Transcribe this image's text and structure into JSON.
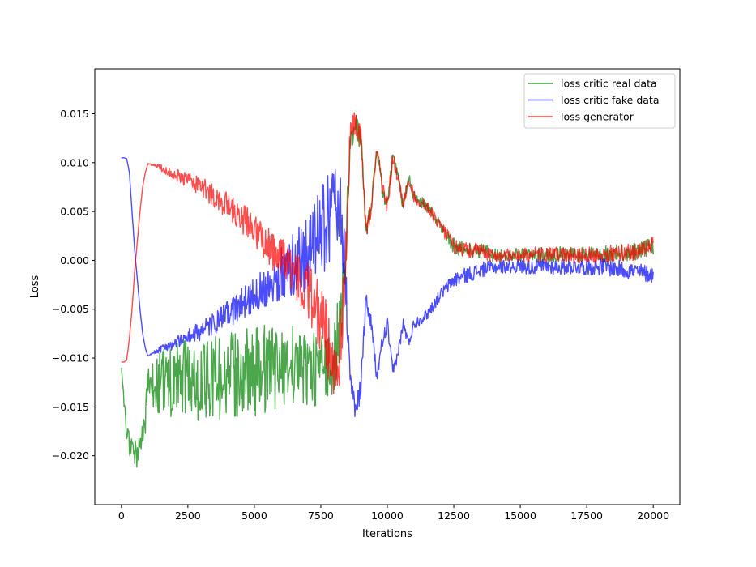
{
  "chart_data": {
    "type": "line",
    "title": "",
    "xlabel": "Iterations",
    "ylabel": "Loss",
    "xlim": [
      -1000,
      21000
    ],
    "ylim": [
      -0.025,
      0.0196
    ],
    "xticks": [
      0,
      2500,
      5000,
      7500,
      10000,
      12500,
      15000,
      17500,
      20000
    ],
    "xtick_labels": [
      "0",
      "2500",
      "5000",
      "7500",
      "10000",
      "12500",
      "15000",
      "17500",
      "20000"
    ],
    "yticks": [
      -0.02,
      -0.015,
      -0.01,
      -0.005,
      0.0,
      0.005,
      0.01,
      0.015
    ],
    "ytick_labels": [
      "−0.020",
      "−0.015",
      "−0.010",
      "−0.005",
      "0.000",
      "0.005",
      "0.010",
      "0.015"
    ],
    "grid": false,
    "legend_position": "top-right",
    "series": [
      {
        "name": "loss critic real data",
        "color": "#008000",
        "x": [
          0,
          100,
          200,
          300,
          400,
          500,
          600,
          700,
          800,
          900,
          1000,
          1500,
          2000,
          2500,
          3000,
          3500,
          4000,
          4500,
          5000,
          5500,
          6000,
          6500,
          7000,
          7500,
          7800,
          8000,
          8200,
          8400,
          8600,
          8800,
          9000,
          9200,
          9400,
          9600,
          9800,
          10000,
          10200,
          10400,
          10600,
          10800,
          11000,
          11500,
          12000,
          12500,
          13000,
          13500,
          14000,
          14500,
          15000,
          15500,
          16000,
          16500,
          17000,
          17500,
          18000,
          18500,
          19000,
          19500,
          20000
        ],
        "y": [
          -0.011,
          -0.0145,
          -0.0175,
          -0.019,
          -0.0195,
          -0.0198,
          -0.02,
          -0.0195,
          -0.018,
          -0.016,
          -0.0135,
          -0.0125,
          -0.0125,
          -0.012,
          -0.0125,
          -0.012,
          -0.012,
          -0.0115,
          -0.0115,
          -0.011,
          -0.011,
          -0.0105,
          -0.011,
          -0.0115,
          -0.011,
          -0.0095,
          -0.0075,
          -0.001,
          0.012,
          0.014,
          0.0125,
          0.003,
          0.0055,
          0.0115,
          0.0075,
          0.0055,
          0.0105,
          0.0085,
          0.0055,
          0.0085,
          0.0065,
          0.0055,
          0.0035,
          0.0015,
          0.001,
          0.001,
          0.0005,
          0.0005,
          0.0005,
          0.0006,
          0.0005,
          0.0006,
          0.0005,
          0.0006,
          0.0006,
          0.0007,
          0.0008,
          0.001,
          0.0015
        ],
        "noise": [
          0,
          0.0005,
          0.001,
          0.0015,
          0.0015,
          0.0015,
          0.0015,
          0.0015,
          0.0015,
          0.002,
          0.0025,
          0.0035,
          0.004,
          0.004,
          0.004,
          0.0045,
          0.0045,
          0.0045,
          0.0045,
          0.0045,
          0.004,
          0.004,
          0.004,
          0.004,
          0.004,
          0.004,
          0.004,
          0.003,
          0.0015,
          0.0015,
          0.0015,
          0.001,
          0.0008,
          0.0008,
          0.0008,
          0.0008,
          0.0008,
          0.0006,
          0.0006,
          0.0006,
          0.0006,
          0.0006,
          0.0006,
          0.0008,
          0.0008,
          0.0008,
          0.0007,
          0.0007,
          0.0007,
          0.0008,
          0.0008,
          0.0008,
          0.0008,
          0.0008,
          0.0009,
          0.0009,
          0.0009,
          0.0009,
          0.0009
        ]
      },
      {
        "name": "loss critic fake data",
        "color": "#0000ff",
        "x": [
          0,
          100,
          200,
          300,
          400,
          500,
          600,
          700,
          800,
          900,
          1000,
          1500,
          2000,
          2500,
          3000,
          3500,
          4000,
          4500,
          5000,
          5500,
          6000,
          6500,
          7000,
          7500,
          7800,
          8000,
          8200,
          8400,
          8600,
          8800,
          9000,
          9200,
          9400,
          9600,
          9800,
          10000,
          10200,
          10400,
          10600,
          10800,
          11000,
          11500,
          12000,
          12500,
          13000,
          13500,
          14000,
          14500,
          15000,
          15500,
          16000,
          16500,
          17000,
          17500,
          18000,
          18500,
          19000,
          19500,
          20000
        ],
        "y": [
          0.0105,
          0.0105,
          0.0104,
          0.009,
          0.005,
          0.001,
          -0.002,
          -0.005,
          -0.0075,
          -0.009,
          -0.0098,
          -0.009,
          -0.0085,
          -0.0078,
          -0.0072,
          -0.0065,
          -0.0055,
          -0.0045,
          -0.0035,
          -0.0025,
          -0.0015,
          -0.0005,
          0.001,
          0.003,
          0.004,
          0.006,
          0.0065,
          -0.0005,
          -0.012,
          -0.0155,
          -0.013,
          -0.004,
          -0.0065,
          -0.012,
          -0.0085,
          -0.0065,
          -0.0115,
          -0.0095,
          -0.0065,
          -0.0085,
          -0.0065,
          -0.0055,
          -0.0035,
          -0.002,
          -0.0015,
          -0.001,
          -0.0007,
          -0.0006,
          -0.0006,
          -0.0007,
          -0.0006,
          -0.0007,
          -0.0006,
          -0.0007,
          -0.0006,
          -0.0008,
          -0.001,
          -0.0012,
          -0.0015
        ],
        "noise": [
          0,
          0,
          0,
          0,
          0,
          0,
          0,
          0,
          0,
          0,
          0,
          0.0004,
          0.0006,
          0.0008,
          0.001,
          0.0012,
          0.0014,
          0.0016,
          0.0018,
          0.0022,
          0.0028,
          0.0035,
          0.004,
          0.0045,
          0.005,
          0.0045,
          0.004,
          0.003,
          0.0015,
          0.0012,
          0.0012,
          0.001,
          0.0008,
          0.0008,
          0.0008,
          0.0008,
          0.0008,
          0.0006,
          0.0006,
          0.0006,
          0.0006,
          0.0006,
          0.0006,
          0.0008,
          0.0008,
          0.0008,
          0.0007,
          0.0007,
          0.0007,
          0.0008,
          0.0008,
          0.0008,
          0.0008,
          0.0008,
          0.0009,
          0.0009,
          0.0009,
          0.0009,
          0.0009
        ]
      },
      {
        "name": "loss generator",
        "color": "#ff0000",
        "x": [
          0,
          100,
          200,
          300,
          400,
          500,
          600,
          700,
          800,
          900,
          1000,
          1500,
          2000,
          2500,
          3000,
          3500,
          4000,
          4500,
          5000,
          5500,
          6000,
          6500,
          7000,
          7500,
          7800,
          8000,
          8200,
          8400,
          8600,
          8800,
          9000,
          9200,
          9400,
          9600,
          9800,
          10000,
          10200,
          10400,
          10600,
          10800,
          11000,
          11500,
          12000,
          12500,
          13000,
          13500,
          14000,
          14500,
          15000,
          15500,
          16000,
          16500,
          17000,
          17500,
          18000,
          18500,
          19000,
          19500,
          20000
        ],
        "y": [
          -0.0104,
          -0.0104,
          -0.0102,
          -0.008,
          -0.005,
          -0.001,
          0.002,
          0.005,
          0.0075,
          0.009,
          0.0099,
          0.0094,
          0.0088,
          0.0082,
          0.0075,
          0.0066,
          0.0055,
          0.0045,
          0.003,
          0.0015,
          0.0002,
          -0.0015,
          -0.003,
          -0.006,
          -0.0085,
          -0.0105,
          -0.01,
          -0.002,
          0.0125,
          0.0145,
          0.0125,
          0.003,
          0.0055,
          0.0115,
          0.0075,
          0.0055,
          0.0105,
          0.0085,
          0.0055,
          0.0085,
          0.0065,
          0.0055,
          0.0035,
          0.0015,
          0.001,
          0.001,
          0.0005,
          0.0005,
          0.0005,
          0.0006,
          0.0005,
          0.0006,
          0.0005,
          0.0006,
          0.0006,
          0.0007,
          0.0008,
          0.001,
          0.0015
        ],
        "noise": [
          0,
          0,
          0,
          0,
          0,
          0,
          0,
          0,
          0,
          0,
          0,
          0.0004,
          0.0006,
          0.0008,
          0.001,
          0.0012,
          0.0014,
          0.0016,
          0.0018,
          0.002,
          0.0022,
          0.0025,
          0.003,
          0.0035,
          0.004,
          0.004,
          0.004,
          0.003,
          0.0015,
          0.0015,
          0.0015,
          0.001,
          0.0008,
          0.0008,
          0.0008,
          0.0008,
          0.0008,
          0.0006,
          0.0006,
          0.0006,
          0.0006,
          0.0006,
          0.0006,
          0.0008,
          0.0008,
          0.0008,
          0.0007,
          0.0007,
          0.0007,
          0.0008,
          0.0008,
          0.0008,
          0.0008,
          0.0008,
          0.0009,
          0.0009,
          0.0009,
          0.0009,
          0.0009
        ]
      }
    ]
  }
}
